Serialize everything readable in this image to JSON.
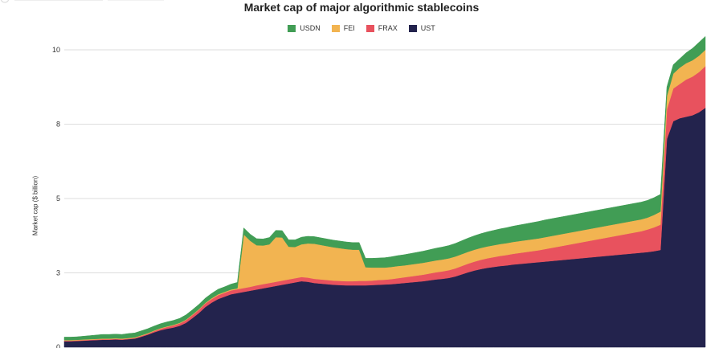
{
  "chart_data": {
    "type": "area",
    "stacked": true,
    "title": "Market cap of major algorithmic stablecoins",
    "ylabel": "Market cap ($ billion)",
    "xlabel": "",
    "ylim": [
      0,
      10
    ],
    "grid": true,
    "legend_position": "top-center",
    "ytick_labels": [
      {
        "value": 0,
        "label": "0"
      },
      {
        "value": 2.5,
        "label": "3"
      },
      {
        "value": 5,
        "label": "5"
      },
      {
        "value": 7.5,
        "label": "8"
      },
      {
        "value": 10,
        "label": "10"
      }
    ],
    "x": [
      0,
      2,
      4,
      6,
      8,
      10,
      12,
      14,
      16,
      18,
      20,
      22,
      24,
      26,
      28,
      30,
      32,
      34,
      36,
      38,
      40,
      42,
      44,
      46,
      48,
      50,
      52,
      54,
      56,
      58,
      60,
      62,
      64,
      66,
      68,
      70,
      72,
      74,
      76,
      78,
      80,
      82,
      84,
      86,
      88,
      90,
      92,
      94,
      96,
      98,
      100,
      102,
      104,
      106,
      108,
      110,
      112,
      114,
      116,
      118,
      120,
      122,
      124,
      126,
      128,
      130,
      132,
      134,
      136,
      138,
      140,
      142,
      144,
      146,
      148,
      150,
      152,
      154,
      156,
      158,
      160,
      162,
      164,
      166,
      168,
      170,
      172,
      174,
      176,
      178,
      180,
      182,
      184,
      186,
      188,
      190,
      192,
      194,
      196,
      198,
      200
    ],
    "series": [
      {
        "name": "UST",
        "color": "#23234d",
        "values": [
          0.2,
          0.2,
          0.21,
          0.22,
          0.23,
          0.24,
          0.25,
          0.25,
          0.26,
          0.25,
          0.27,
          0.29,
          0.35,
          0.42,
          0.5,
          0.57,
          0.62,
          0.66,
          0.72,
          0.82,
          0.98,
          1.15,
          1.35,
          1.5,
          1.62,
          1.7,
          1.78,
          1.82,
          1.86,
          1.9,
          1.94,
          1.98,
          2.02,
          2.06,
          2.1,
          2.14,
          2.18,
          2.22,
          2.2,
          2.16,
          2.14,
          2.12,
          2.1,
          2.09,
          2.08,
          2.08,
          2.08,
          2.08,
          2.09,
          2.1,
          2.11,
          2.12,
          2.14,
          2.16,
          2.18,
          2.2,
          2.22,
          2.25,
          2.28,
          2.3,
          2.33,
          2.38,
          2.45,
          2.52,
          2.58,
          2.63,
          2.67,
          2.7,
          2.73,
          2.75,
          2.78,
          2.8,
          2.82,
          2.84,
          2.86,
          2.88,
          2.9,
          2.92,
          2.94,
          2.96,
          2.98,
          3.0,
          3.02,
          3.04,
          3.06,
          3.08,
          3.1,
          3.12,
          3.14,
          3.16,
          3.18,
          3.2,
          3.23,
          3.27,
          7.0,
          7.6,
          7.7,
          7.75,
          7.8,
          7.9,
          8.05
        ]
      },
      {
        "name": "FRAX",
        "color": "#e8525e",
        "values": [
          0.02,
          0.02,
          0.02,
          0.02,
          0.02,
          0.02,
          0.02,
          0.02,
          0.02,
          0.02,
          0.02,
          0.02,
          0.03,
          0.03,
          0.04,
          0.05,
          0.06,
          0.07,
          0.08,
          0.09,
          0.1,
          0.11,
          0.12,
          0.12,
          0.13,
          0.13,
          0.13,
          0.13,
          0.13,
          0.13,
          0.14,
          0.14,
          0.14,
          0.14,
          0.14,
          0.14,
          0.14,
          0.14,
          0.14,
          0.14,
          0.14,
          0.14,
          0.14,
          0.14,
          0.14,
          0.14,
          0.15,
          0.15,
          0.15,
          0.16,
          0.16,
          0.17,
          0.18,
          0.19,
          0.2,
          0.21,
          0.22,
          0.23,
          0.24,
          0.25,
          0.26,
          0.27,
          0.28,
          0.29,
          0.3,
          0.31,
          0.32,
          0.33,
          0.34,
          0.35,
          0.36,
          0.37,
          0.38,
          0.39,
          0.4,
          0.42,
          0.44,
          0.46,
          0.48,
          0.5,
          0.52,
          0.54,
          0.56,
          0.58,
          0.6,
          0.62,
          0.64,
          0.66,
          0.68,
          0.7,
          0.72,
          0.76,
          0.8,
          0.85,
          1.0,
          1.1,
          1.15,
          1.25,
          1.3,
          1.35,
          1.4
        ]
      },
      {
        "name": "FEI",
        "color": "#f2b451",
        "values": [
          0.02,
          0.02,
          0.02,
          0.02,
          0.02,
          0.02,
          0.02,
          0.02,
          0.02,
          0.02,
          0.02,
          0.02,
          0.02,
          0.02,
          0.02,
          0.02,
          0.02,
          0.02,
          0.02,
          0.02,
          0.02,
          0.02,
          0.02,
          0.03,
          0.03,
          0.03,
          0.03,
          0.03,
          1.8,
          1.55,
          1.35,
          1.3,
          1.3,
          1.5,
          1.45,
          1.1,
          1.05,
          1.1,
          1.15,
          1.18,
          1.16,
          1.14,
          1.12,
          1.1,
          1.08,
          1.06,
          1.05,
          0.46,
          0.44,
          0.42,
          0.41,
          0.41,
          0.41,
          0.4,
          0.4,
          0.4,
          0.4,
          0.4,
          0.4,
          0.4,
          0.4,
          0.4,
          0.4,
          0.4,
          0.4,
          0.4,
          0.4,
          0.4,
          0.4,
          0.4,
          0.4,
          0.4,
          0.4,
          0.4,
          0.4,
          0.4,
          0.4,
          0.4,
          0.4,
          0.4,
          0.4,
          0.4,
          0.4,
          0.4,
          0.4,
          0.4,
          0.4,
          0.4,
          0.4,
          0.4,
          0.4,
          0.4,
          0.42,
          0.44,
          0.45,
          0.5,
          0.55,
          0.55,
          0.55,
          0.55,
          0.55
        ]
      },
      {
        "name": "USDN",
        "color": "#419d55",
        "values": [
          0.1,
          0.1,
          0.1,
          0.11,
          0.12,
          0.13,
          0.14,
          0.14,
          0.14,
          0.14,
          0.15,
          0.15,
          0.15,
          0.15,
          0.15,
          0.15,
          0.15,
          0.15,
          0.15,
          0.16,
          0.16,
          0.16,
          0.16,
          0.16,
          0.17,
          0.17,
          0.18,
          0.2,
          0.22,
          0.22,
          0.22,
          0.22,
          0.23,
          0.23,
          0.23,
          0.23,
          0.24,
          0.24,
          0.24,
          0.24,
          0.24,
          0.24,
          0.24,
          0.24,
          0.24,
          0.24,
          0.24,
          0.3,
          0.31,
          0.32,
          0.33,
          0.34,
          0.35,
          0.36,
          0.37,
          0.38,
          0.39,
          0.4,
          0.41,
          0.42,
          0.43,
          0.44,
          0.45,
          0.46,
          0.47,
          0.48,
          0.49,
          0.5,
          0.51,
          0.52,
          0.53,
          0.54,
          0.55,
          0.56,
          0.57,
          0.58,
          0.58,
          0.58,
          0.58,
          0.58,
          0.58,
          0.58,
          0.58,
          0.58,
          0.58,
          0.58,
          0.58,
          0.58,
          0.58,
          0.58,
          0.58,
          0.58,
          0.58,
          0.58,
          0.3,
          0.3,
          0.3,
          0.35,
          0.4,
          0.45,
          0.45
        ]
      }
    ]
  }
}
